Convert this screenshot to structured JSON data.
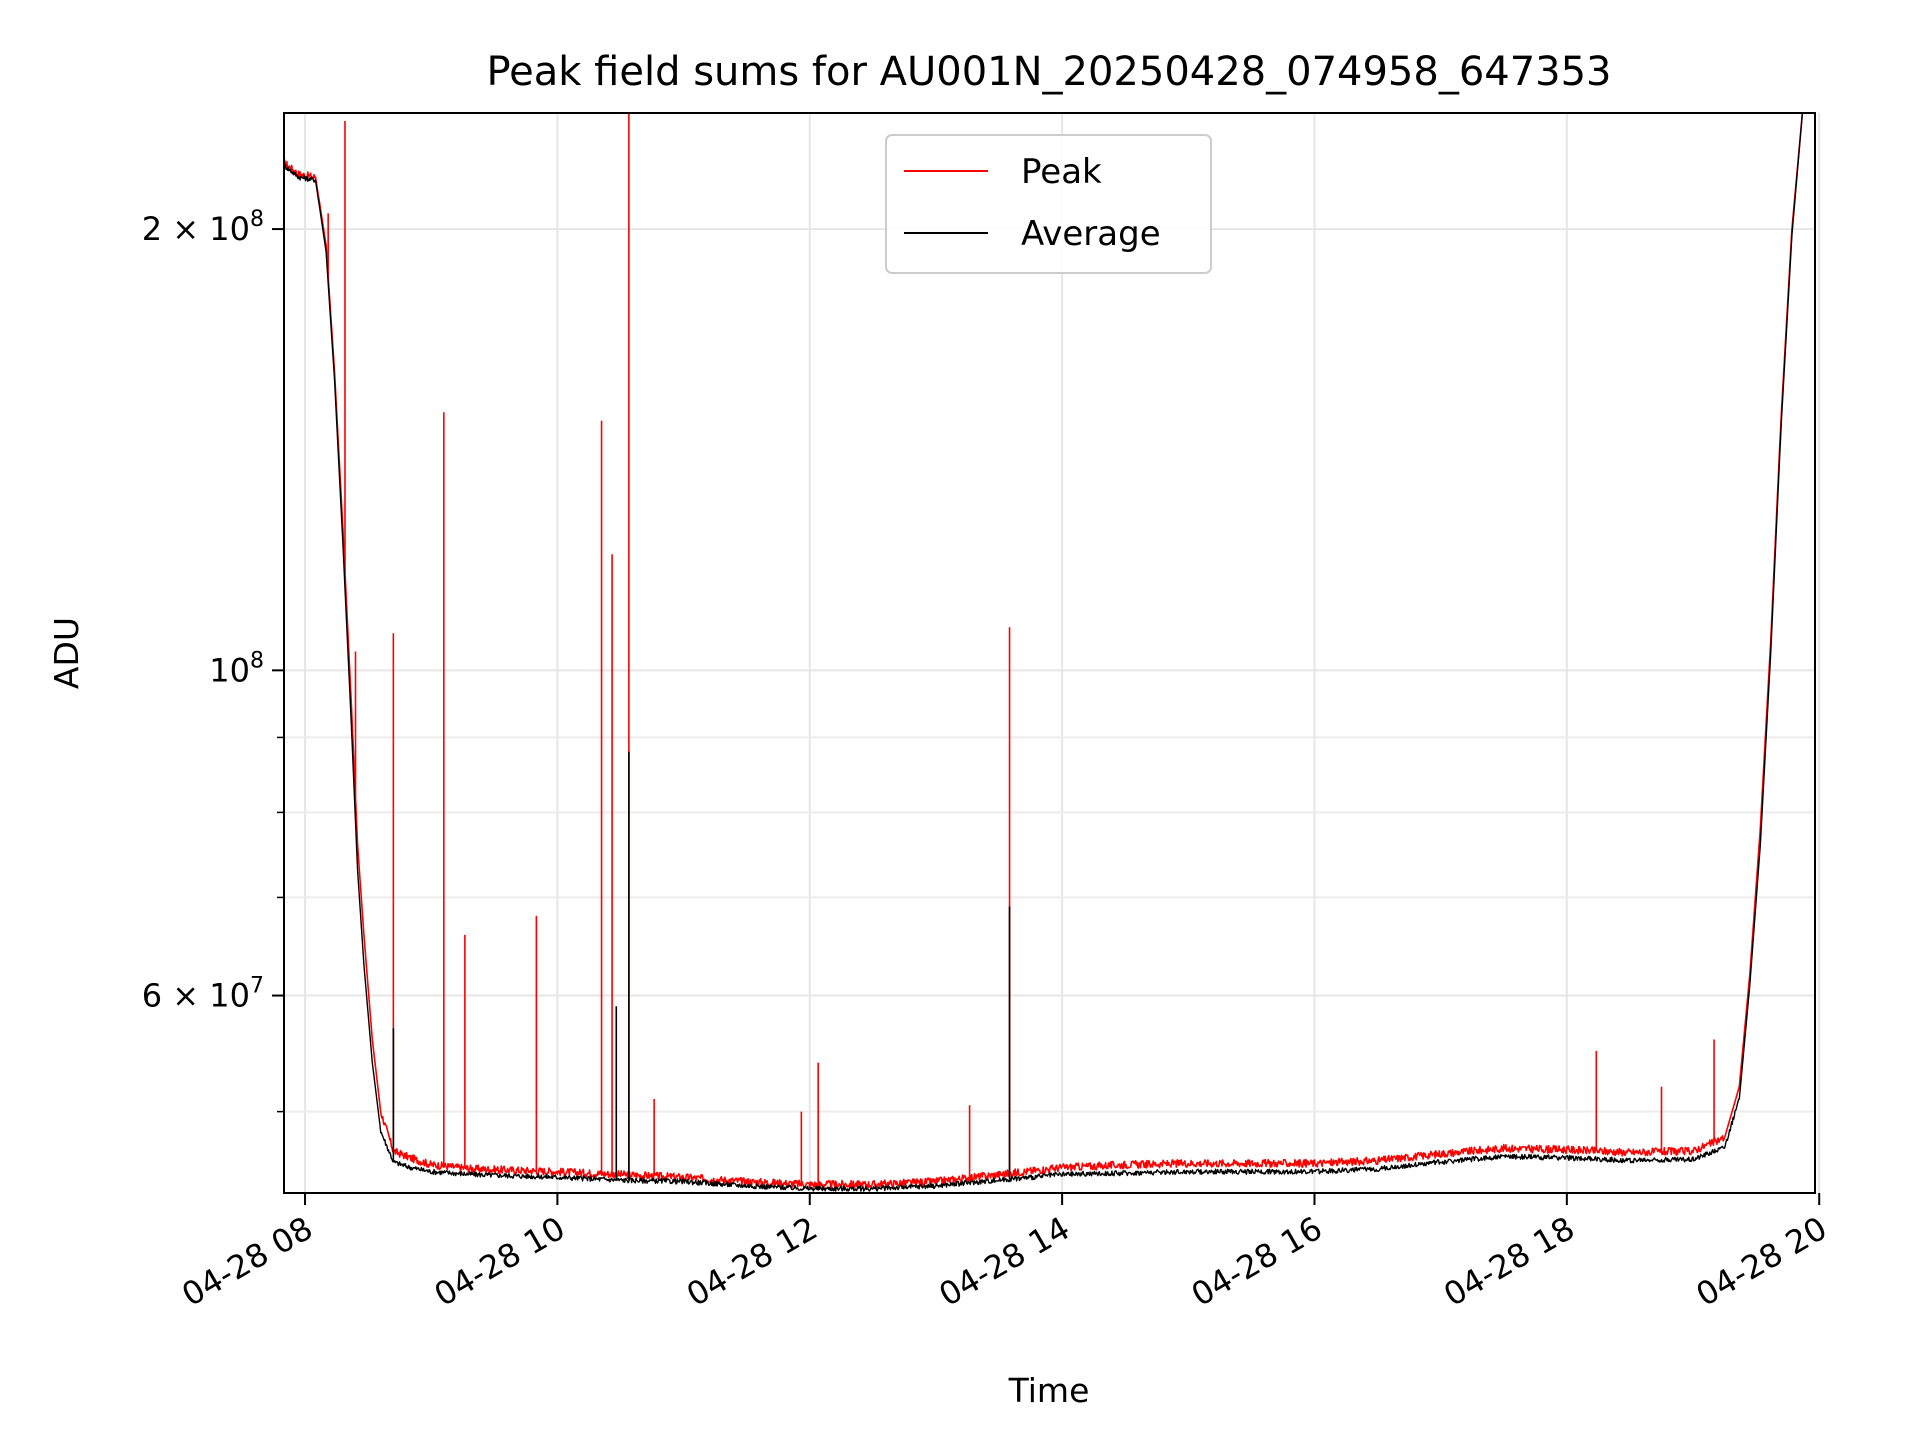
{
  "chart_data": {
    "type": "line",
    "title": "Peak field sums for AU001N_20250428_074958_647353",
    "xlabel": "Time",
    "ylabel": "ADU",
    "yscale": "log",
    "grid": true,
    "legend_position": "top-center",
    "x_range": [
      "04-28 07:50",
      "04-28 19:58"
    ],
    "y_range": [
      44000000,
      240000000
    ],
    "x_tick_labels": [
      "04-28 08",
      "04-28 10",
      "04-28 12",
      "04-28 14",
      "04-28 16",
      "04-28 18",
      "04-28 20"
    ],
    "y_tick_labels": [
      {
        "value": 200000000,
        "mantissa": "2",
        "exponent": "8"
      },
      {
        "value": 100000000,
        "mantissa": "",
        "exponent": "8"
      },
      {
        "value": 60000000,
        "mantissa": "6",
        "exponent": "7"
      }
    ],
    "series": [
      {
        "name": "Peak",
        "color": "#ff0000",
        "points": [
          [
            "07:50",
            222000000
          ],
          [
            "07:57",
            218000000
          ],
          [
            "08:05",
            217000000
          ],
          [
            "08:10",
            195000000
          ],
          [
            "08:14",
            160000000
          ],
          [
            "08:18",
            125000000
          ],
          [
            "08:22",
            95000000
          ],
          [
            "08:25",
            76000000
          ],
          [
            "08:28",
            66000000
          ],
          [
            "08:32",
            56000000
          ],
          [
            "08:36",
            50000000
          ],
          [
            "08:42",
            47000000
          ],
          [
            "08:50",
            46500000
          ],
          [
            "09:00",
            46000000
          ],
          [
            "09:20",
            45700000
          ],
          [
            "09:40",
            45600000
          ],
          [
            "10:00",
            45500000
          ],
          [
            "10:30",
            45300000
          ],
          [
            "11:00",
            45100000
          ],
          [
            "11:30",
            44800000
          ],
          [
            "12:00",
            44600000
          ],
          [
            "12:30",
            44600000
          ],
          [
            "13:00",
            44800000
          ],
          [
            "13:30",
            45300000
          ],
          [
            "14:00",
            45800000
          ],
          [
            "14:30",
            46000000
          ],
          [
            "15:00",
            46100000
          ],
          [
            "15:30",
            46100000
          ],
          [
            "16:00",
            46100000
          ],
          [
            "16:30",
            46300000
          ],
          [
            "17:00",
            46800000
          ],
          [
            "17:30",
            47200000
          ],
          [
            "18:00",
            47100000
          ],
          [
            "18:30",
            46900000
          ],
          [
            "19:00",
            47000000
          ],
          [
            "19:15",
            48000000
          ],
          [
            "19:22",
            52000000
          ],
          [
            "19:27",
            62000000
          ],
          [
            "19:32",
            78000000
          ],
          [
            "19:37",
            105000000
          ],
          [
            "19:42",
            150000000
          ],
          [
            "19:47",
            200000000
          ],
          [
            "19:52",
            240000000
          ]
        ],
        "spikes": [
          [
            "08:11",
            205000000
          ],
          [
            "08:19",
            237000000
          ],
          [
            "08:24",
            103000000
          ],
          [
            "08:42",
            106000000
          ],
          [
            "09:06",
            150000000
          ],
          [
            "09:16",
            66000000
          ],
          [
            "09:50",
            68000000
          ],
          [
            "10:21",
            148000000
          ],
          [
            "10:26",
            120000000
          ],
          [
            "10:34",
            240000000
          ],
          [
            "10:46",
            51000000
          ],
          [
            "11:56",
            50000000
          ],
          [
            "12:04",
            54000000
          ],
          [
            "13:16",
            50500000
          ],
          [
            "13:35",
            107000000
          ],
          [
            "18:14",
            55000000
          ],
          [
            "18:45",
            52000000
          ],
          [
            "19:10",
            56000000
          ]
        ]
      },
      {
        "name": "Average",
        "color": "#000000",
        "points": [
          [
            "07:50",
            221000000
          ],
          [
            "07:57",
            217000000
          ],
          [
            "08:05",
            216000000
          ],
          [
            "08:10",
            193000000
          ],
          [
            "08:14",
            158000000
          ],
          [
            "08:18",
            122000000
          ],
          [
            "08:22",
            92000000
          ],
          [
            "08:25",
            73000000
          ],
          [
            "08:28",
            63000000
          ],
          [
            "08:32",
            54000000
          ],
          [
            "08:36",
            48500000
          ],
          [
            "08:42",
            46200000
          ],
          [
            "08:50",
            45800000
          ],
          [
            "09:00",
            45500000
          ],
          [
            "09:20",
            45300000
          ],
          [
            "09:40",
            45200000
          ],
          [
            "10:00",
            45100000
          ],
          [
            "10:30",
            44900000
          ],
          [
            "11:00",
            44800000
          ],
          [
            "11:30",
            44500000
          ],
          [
            "12:00",
            44300000
          ],
          [
            "12:30",
            44300000
          ],
          [
            "13:00",
            44500000
          ],
          [
            "13:30",
            44900000
          ],
          [
            "14:00",
            45300000
          ],
          [
            "14:30",
            45400000
          ],
          [
            "15:00",
            45500000
          ],
          [
            "15:30",
            45500000
          ],
          [
            "16:00",
            45500000
          ],
          [
            "16:30",
            45700000
          ],
          [
            "17:00",
            46200000
          ],
          [
            "17:30",
            46600000
          ],
          [
            "18:00",
            46500000
          ],
          [
            "18:30",
            46300000
          ],
          [
            "19:00",
            46400000
          ],
          [
            "19:15",
            47300000
          ],
          [
            "19:22",
            51000000
          ],
          [
            "19:27",
            61000000
          ],
          [
            "19:32",
            76000000
          ],
          [
            "19:37",
            103000000
          ],
          [
            "19:42",
            148000000
          ],
          [
            "19:47",
            198000000
          ],
          [
            "19:52",
            240000000
          ]
        ],
        "spikes": [
          [
            "08:42",
            57000000
          ],
          [
            "10:28",
            59000000
          ],
          [
            "10:34",
            88000000
          ],
          [
            "13:35",
            69000000
          ]
        ]
      }
    ]
  }
}
